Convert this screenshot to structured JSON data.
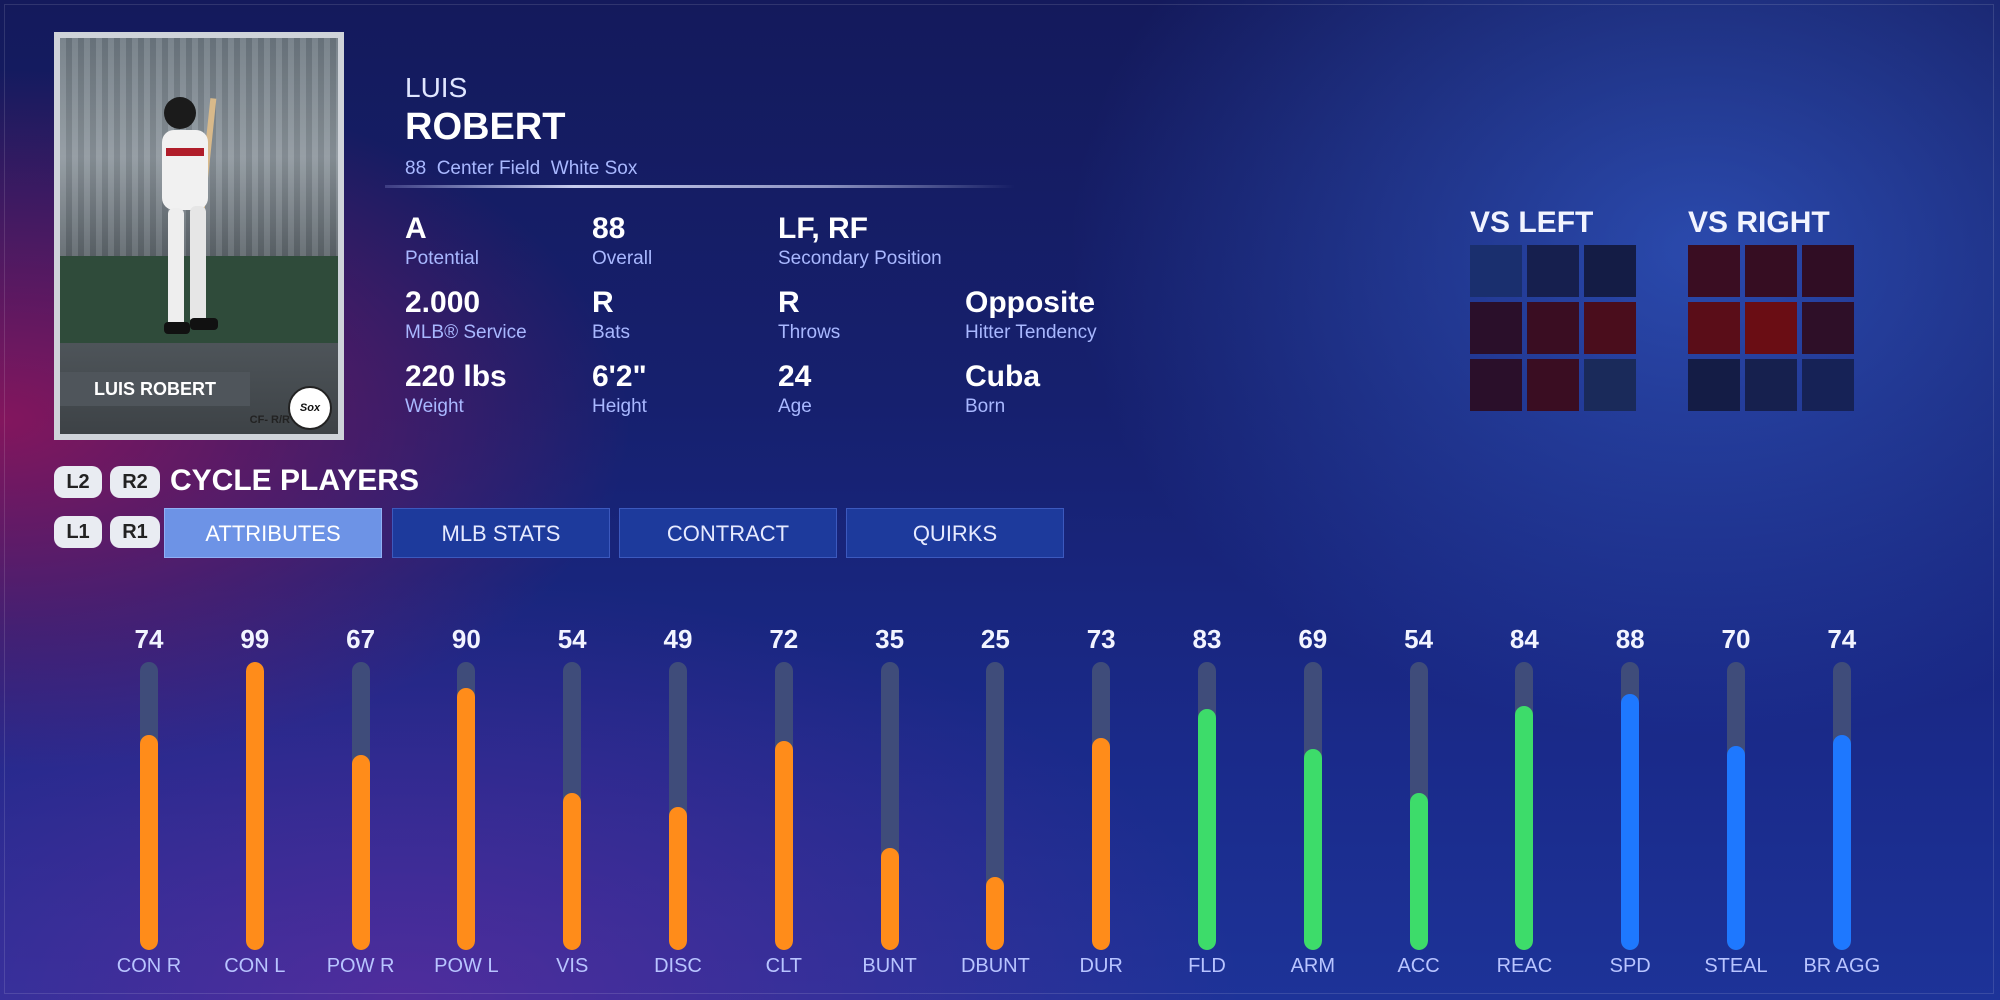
{
  "card": {
    "name_plate": "LUIS ROBERT",
    "position_hand": "CF- R/R",
    "logo_text": "Sox"
  },
  "player": {
    "first_name": "LUIS",
    "last_name": "ROBERT",
    "overall_number": "88",
    "position": "Center Field",
    "team": "White Sox"
  },
  "info": [
    {
      "value": "A",
      "label": "Potential"
    },
    {
      "value": "88",
      "label": "Overall"
    },
    {
      "value": "LF, RF",
      "label": "Secondary Position"
    },
    {
      "value": "2.000",
      "label": "MLB® Service"
    },
    {
      "value": "R",
      "label": "Bats"
    },
    {
      "value": "R",
      "label": "Throws"
    },
    {
      "value": "Opposite",
      "label": "Hitter Tendency"
    },
    {
      "value": "220 lbs",
      "label": "Weight"
    },
    {
      "value": "6'2\"",
      "label": "Height"
    },
    {
      "value": "24",
      "label": "Age"
    },
    {
      "value": "Cuba",
      "label": "Born"
    }
  ],
  "zones": {
    "vs_left": {
      "title": "VS LEFT",
      "cells": [
        "#1a2f6e",
        "#161f4e",
        "#141c45",
        "#2a0f2a",
        "#3a0d22",
        "#4a0d1c",
        "#2a0f2a",
        "#3a0d22",
        "#1a2a5a"
      ]
    },
    "vs_right": {
      "title": "VS RIGHT",
      "cells": [
        "#3a0d22",
        "#360d22",
        "#300d24",
        "#5a0d18",
        "#6a0d14",
        "#2e0f28",
        "#141c45",
        "#16204e",
        "#162256"
      ]
    }
  },
  "controls": {
    "l2": "L2",
    "r2": "R2",
    "l1": "L1",
    "r1": "R1",
    "cycle_label": "CYCLE PLAYERS"
  },
  "tabs": [
    {
      "label": "ATTRIBUTES",
      "active": true
    },
    {
      "label": "MLB STATS",
      "active": false
    },
    {
      "label": "CONTRACT",
      "active": false
    },
    {
      "label": "QUIRKS",
      "active": false
    }
  ],
  "colors": {
    "hitting": "#ff8c1a",
    "fielding": "#3ddc6a",
    "running": "#1e78ff"
  },
  "chart_data": {
    "type": "bar",
    "categories": [
      "CON R",
      "CON L",
      "POW R",
      "POW L",
      "VIS",
      "DISC",
      "CLT",
      "BUNT",
      "DBUNT",
      "DUR",
      "FLD",
      "ARM",
      "ACC",
      "REAC",
      "SPD",
      "STEAL",
      "BR AGG"
    ],
    "values": [
      74,
      99,
      67,
      90,
      54,
      49,
      72,
      35,
      25,
      73,
      83,
      69,
      54,
      84,
      88,
      70,
      74
    ],
    "groups": [
      "hitting",
      "hitting",
      "hitting",
      "hitting",
      "hitting",
      "hitting",
      "hitting",
      "hitting",
      "hitting",
      "hitting",
      "fielding",
      "fielding",
      "fielding",
      "fielding",
      "running",
      "running",
      "running"
    ],
    "ylim": [
      0,
      99
    ]
  }
}
